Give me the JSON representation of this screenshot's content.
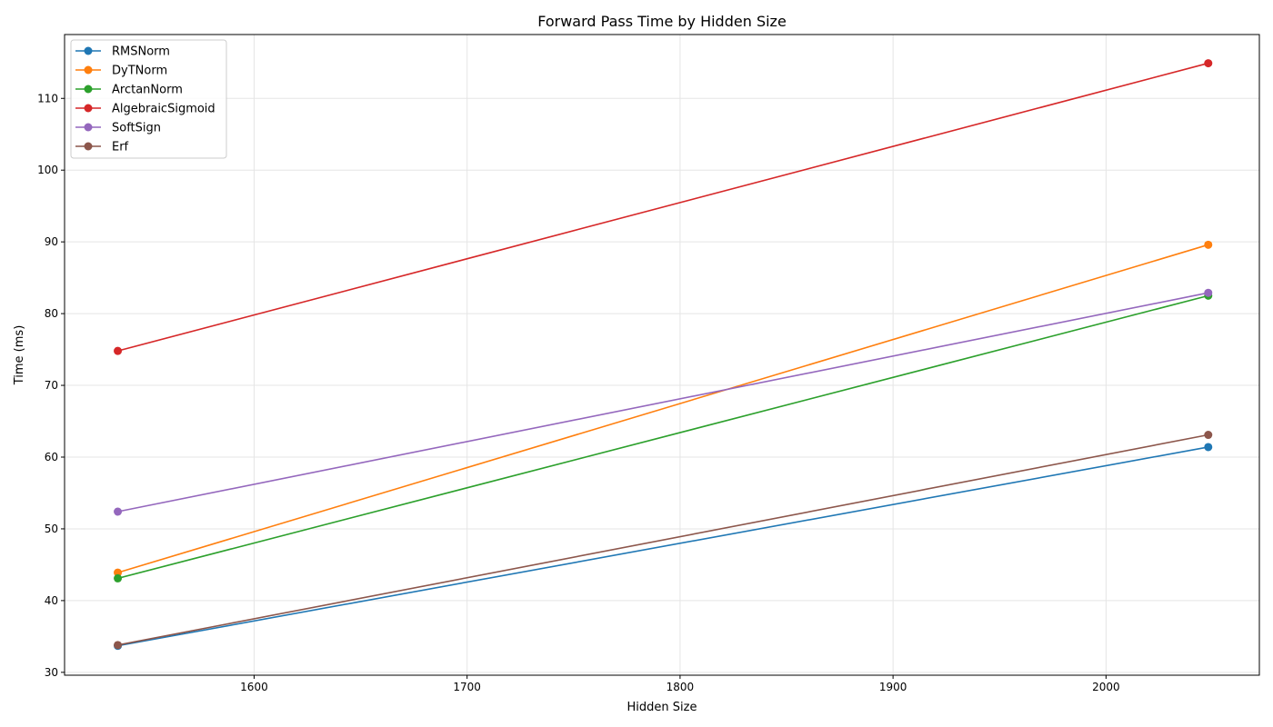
{
  "chart_data": {
    "type": "line",
    "title": "Forward Pass Time by Hidden Size",
    "xlabel": "Hidden Size",
    "ylabel": "Time (ms)",
    "x": [
      1536,
      2048
    ],
    "xlim": [
      1511,
      2072
    ],
    "ylim": [
      29.6,
      118.9
    ],
    "xticks": [
      1600,
      1700,
      1800,
      1900,
      2000
    ],
    "yticks": [
      30,
      40,
      50,
      60,
      70,
      80,
      90,
      100,
      110
    ],
    "grid": true,
    "legend_position": "upper left",
    "series": [
      {
        "name": "RMSNorm",
        "color": "#1f77b4",
        "values": [
          33.7,
          61.4
        ]
      },
      {
        "name": "DyTNorm",
        "color": "#ff7f0e",
        "values": [
          43.9,
          89.6
        ]
      },
      {
        "name": "ArctanNorm",
        "color": "#2ca02c",
        "values": [
          43.1,
          82.5
        ]
      },
      {
        "name": "AlgebraicSigmoid",
        "color": "#d62728",
        "values": [
          74.8,
          114.9
        ]
      },
      {
        "name": "SoftSign",
        "color": "#9467bd",
        "values": [
          52.4,
          82.9
        ]
      },
      {
        "name": "Erf",
        "color": "#8c564b",
        "values": [
          33.8,
          63.1
        ]
      }
    ]
  }
}
